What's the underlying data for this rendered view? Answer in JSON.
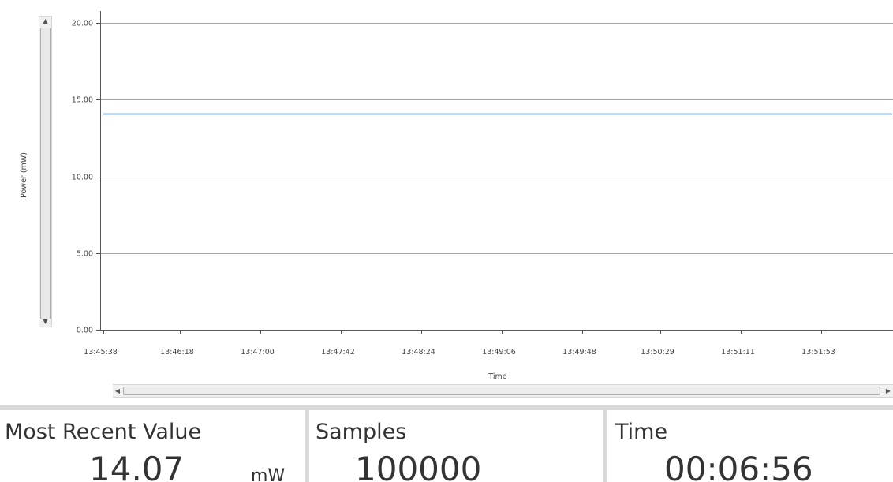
{
  "chart_data": {
    "type": "line",
    "ylabel": "Power (mW)",
    "xlabel": "Time",
    "ylim": [
      0,
      21.5
    ],
    "y_ticks": [
      "0.00",
      "5.00",
      "10.00",
      "15.00",
      "20.00"
    ],
    "y_tick_values": [
      0,
      5,
      10,
      15,
      20
    ],
    "x_ticks": [
      "13:45:38",
      "13:46:18",
      "13:47:00",
      "13:47:42",
      "13:48:24",
      "13:49:06",
      "13:49:48",
      "13:50:29",
      "13:51:11",
      "13:51:53"
    ],
    "grid": true,
    "series": [
      {
        "color": "#2e75b6",
        "x": [
          "13:45:38",
          "13:52:34"
        ],
        "y": [
          14.07,
          14.07
        ]
      }
    ]
  },
  "panels": {
    "most_recent": {
      "title": "Most Recent Value",
      "value": "14.07",
      "unit": "mW"
    },
    "samples": {
      "title": "Samples",
      "value": "100000"
    },
    "time": {
      "title": "Time",
      "value": "00:06:56"
    }
  },
  "scroll": {
    "up_icon": "▲",
    "down_icon": "▼",
    "left_icon": "◀",
    "right_icon": "▶"
  }
}
